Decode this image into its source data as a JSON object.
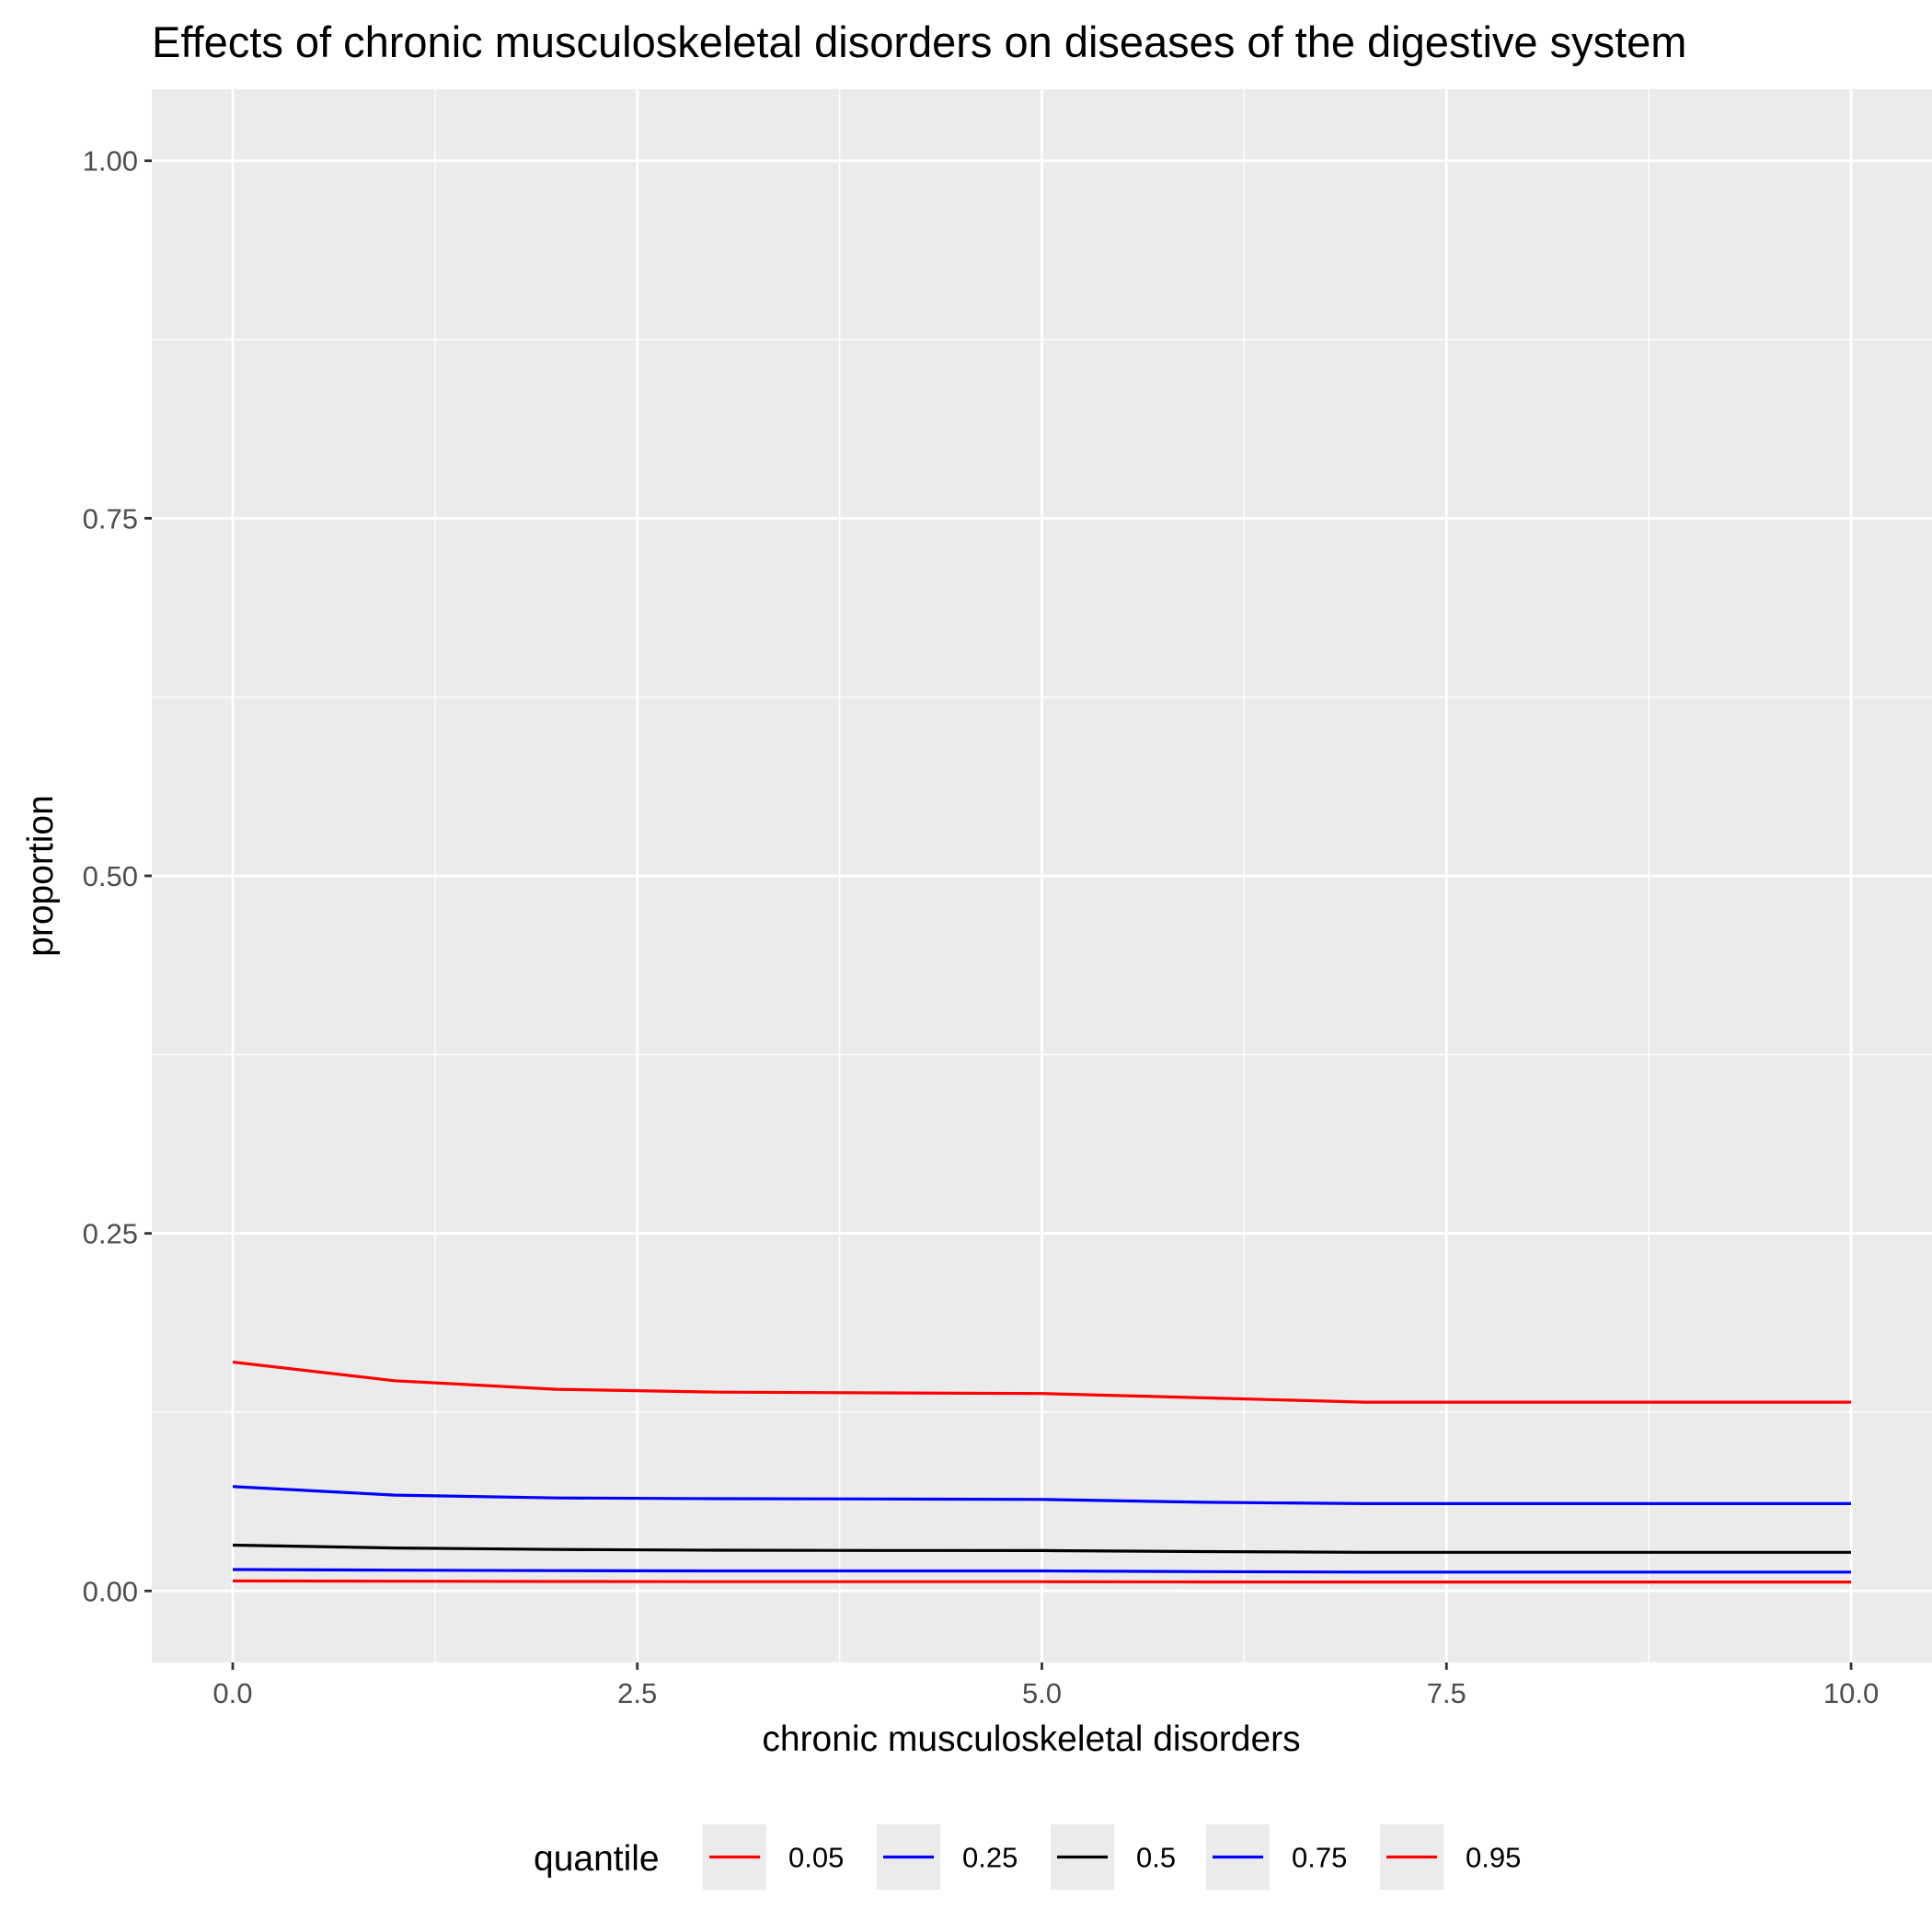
{
  "chart_data": {
    "type": "line",
    "title": "Effects of chronic musculoskeletal disorders on diseases of the digestive system",
    "xlabel": "chronic musculoskeletal disorders",
    "ylabel": "proportion",
    "xlim": [
      -0.5,
      10.5
    ],
    "ylim": [
      -0.05,
      1.05
    ],
    "x_ticks": [
      0,
      2.5,
      5,
      7.5,
      10
    ],
    "x_tick_labels": [
      "0.0",
      "2.5",
      "5.0",
      "7.5",
      "10.0"
    ],
    "y_ticks": [
      0,
      0.25,
      0.5,
      0.75,
      1.0
    ],
    "y_tick_labels": [
      "0.00",
      "0.25",
      "0.50",
      "0.75",
      "1.00"
    ],
    "grid": true,
    "legend": {
      "title": "quantile",
      "position": "bottom"
    },
    "x": [
      0,
      1,
      2,
      3,
      4,
      5,
      6,
      7,
      8,
      9,
      10
    ],
    "series": [
      {
        "name": "0.05",
        "color": "#ff0000",
        "values": [
          0.007,
          0.0068,
          0.0066,
          0.0065,
          0.0065,
          0.0065,
          0.0063,
          0.0062,
          0.0062,
          0.0062,
          0.0062
        ]
      },
      {
        "name": "0.25",
        "color": "#0000ff",
        "values": [
          0.015,
          0.0145,
          0.0142,
          0.014,
          0.014,
          0.014,
          0.0135,
          0.0132,
          0.0132,
          0.0132,
          0.0132
        ]
      },
      {
        "name": "0.5",
        "color": "#000000",
        "values": [
          0.032,
          0.03,
          0.029,
          0.0285,
          0.0283,
          0.0282,
          0.0275,
          0.027,
          0.027,
          0.027,
          0.027
        ]
      },
      {
        "name": "0.75",
        "color": "#0000ff",
        "values": [
          0.073,
          0.067,
          0.065,
          0.0645,
          0.0643,
          0.064,
          0.062,
          0.061,
          0.061,
          0.061,
          0.061
        ]
      },
      {
        "name": "0.95",
        "color": "#ff0000",
        "values": [
          0.16,
          0.147,
          0.141,
          0.139,
          0.1385,
          0.138,
          0.135,
          0.132,
          0.132,
          0.132,
          0.132
        ]
      }
    ]
  }
}
